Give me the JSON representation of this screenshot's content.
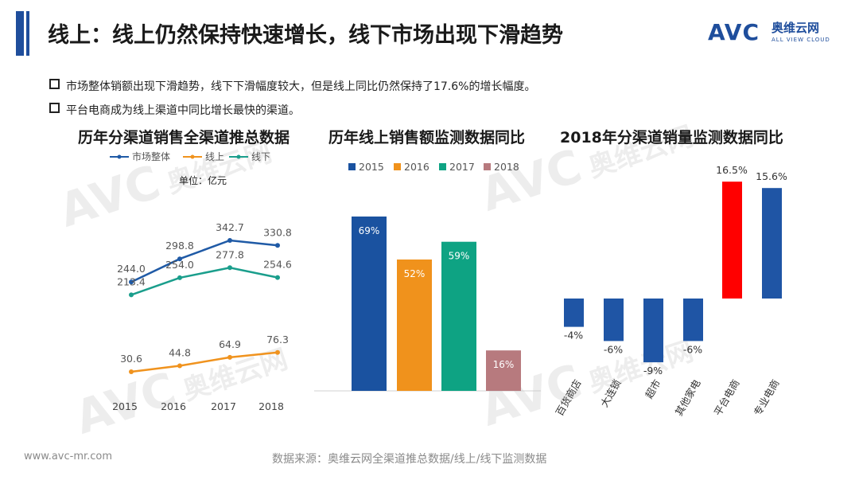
{
  "header": {
    "title": "线上：线上仍然保持快速增长，线下市场出现下滑趋势",
    "logo_mark": "AVC",
    "logo_cn": "奥维云网",
    "logo_en": "ALL VIEW CLOUD"
  },
  "bullets": [
    "市场整体销额出现下滑趋势，线下下滑幅度较大，但是线上同比仍然保持了17.6%的增长幅度。",
    "平台电商成为线上渠道中同比增长最快的渠道。"
  ],
  "footer": {
    "website": "www.avc-mr.com",
    "source": "数据来源：奥维云网全渠道推总数据/线上/线下监测数据"
  },
  "watermark": {
    "logo": "AVC",
    "cn": "奥维云网",
    "en": "ALL VIEW CLOUD"
  },
  "colors": {
    "brand": "#1f4e9c",
    "market": "#1f5aa6",
    "online": "#f0931e",
    "offline": "#1a9e8c",
    "c2015": "#1a52a0",
    "c2016": "#f0921c",
    "c2017": "#0ea383",
    "c2018": "#b77a7e",
    "negative": "#1f55a5",
    "highlight": "#ff0000"
  },
  "chart_data": [
    {
      "type": "line",
      "title": "历年分渠道销售全渠道推总数据",
      "unit_label": "单位：亿元",
      "x": [
        "2015",
        "2016",
        "2017",
        "2018"
      ],
      "series": [
        {
          "name": "市场整体",
          "values": [
            244.0,
            298.8,
            342.7,
            330.8
          ],
          "labels": [
            "244.0",
            "298.8",
            "342.7",
            "330.8"
          ]
        },
        {
          "name": "线上",
          "values": [
            30.6,
            44.8,
            64.9,
            76.3
          ],
          "labels": [
            "30.6",
            "44.8",
            "64.9",
            "76.3"
          ]
        },
        {
          "name": "线下",
          "values": [
            213.4,
            254.0,
            277.8,
            254.6
          ],
          "labels": [
            "213.4",
            "254.0",
            "277.8",
            "254.6"
          ]
        }
      ],
      "legend_position": "top",
      "grid": false
    },
    {
      "type": "bar",
      "title": "历年线上销售额监测数据同比",
      "categories": [
        "2015",
        "2016",
        "2017",
        "2018"
      ],
      "values": [
        69,
        52,
        59,
        16
      ],
      "labels": [
        "69%",
        "52%",
        "59%",
        "16%"
      ],
      "legend_position": "top",
      "grid": false
    },
    {
      "type": "bar",
      "title": "2018年分渠道销量监测数据同比",
      "categories": [
        "百货商店",
        "大连锁",
        "超市",
        "其他家电",
        "平台电商",
        "专业电商"
      ],
      "values": [
        -4,
        -6,
        -9,
        -6,
        16.5,
        15.6
      ],
      "labels": [
        "-4%",
        "-6%",
        "-9%",
        "-6%",
        "16.5%",
        "15.6%"
      ],
      "highlight_category": "平台电商",
      "grid": false
    }
  ]
}
